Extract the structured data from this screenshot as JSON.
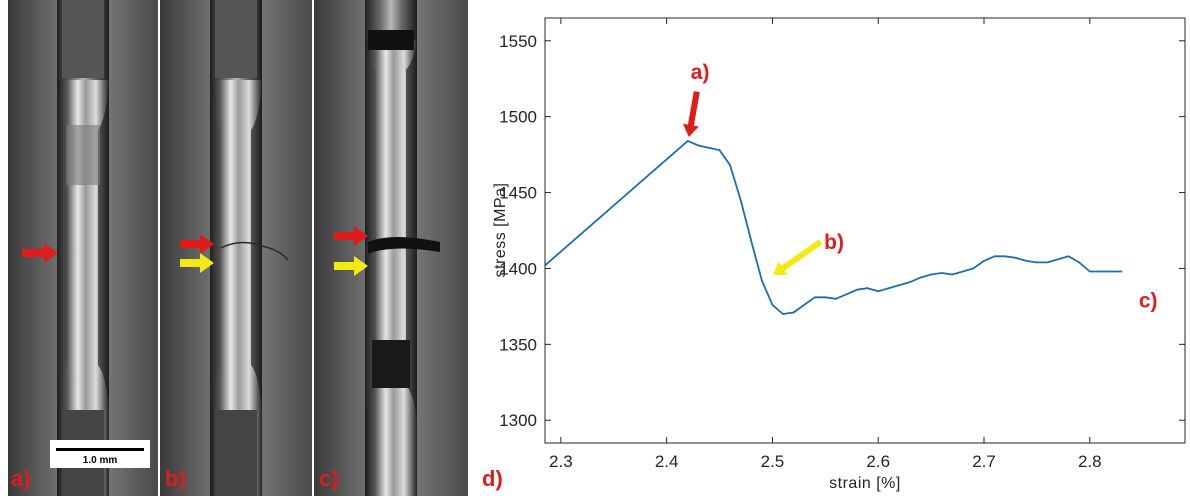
{
  "photo_panels": {
    "scale_bar_label": "1.0 mm",
    "labels": [
      "a)",
      "b)",
      "c)"
    ],
    "arrow_colors": {
      "red": "#e01b1b",
      "yellow": "#f2ea12"
    }
  },
  "chart_panel_label": "d)",
  "chart_data": {
    "type": "line",
    "xlabel": "strain [%]",
    "ylabel": "stress [MPa]",
    "xlim": [
      2.285,
      2.89
    ],
    "ylim": [
      1285,
      1565
    ],
    "xticks": [
      "2.3",
      "2.4",
      "2.5",
      "2.6",
      "2.7",
      "2.8"
    ],
    "xtick_values": [
      2.3,
      2.4,
      2.5,
      2.6,
      2.7,
      2.8
    ],
    "yticks": [
      "1300",
      "1350",
      "1400",
      "1450",
      "1500",
      "1550"
    ],
    "ytick_values": [
      1300,
      1350,
      1400,
      1450,
      1500,
      1550
    ],
    "grid": false,
    "line_color": "#1f6fa8",
    "x": [
      2.285,
      2.42,
      2.43,
      2.45,
      2.46,
      2.47,
      2.48,
      2.49,
      2.5,
      2.51,
      2.52,
      2.53,
      2.54,
      2.55,
      2.56,
      2.57,
      2.58,
      2.59,
      2.6,
      2.61,
      2.62,
      2.63,
      2.64,
      2.65,
      2.66,
      2.67,
      2.68,
      2.69,
      2.7,
      2.71,
      2.72,
      2.73,
      2.74,
      2.75,
      2.76,
      2.77,
      2.78,
      2.79,
      2.8,
      2.81,
      2.82,
      2.83
    ],
    "y": [
      1402,
      1484,
      1481,
      1478,
      1468,
      1445,
      1418,
      1392,
      1376,
      1370,
      1371,
      1376,
      1381,
      1381,
      1380,
      1383,
      1386,
      1387,
      1385,
      1387,
      1389,
      1391,
      1394,
      1396,
      1397,
      1396,
      1398,
      1400,
      1405,
      1408,
      1408,
      1407,
      1405,
      1404,
      1404,
      1406,
      1408,
      1404,
      1398,
      1398,
      1398,
      1398
    ],
    "annotations": [
      {
        "text": "a)",
        "color": "#e01b1b",
        "x": 2.42,
        "y": 1484
      },
      {
        "text": "b)",
        "color": "#e01b1b",
        "x": 2.495,
        "y": 1393
      },
      {
        "text": "c)",
        "color": "#e01b1b",
        "x": 2.835,
        "y": 1398
      }
    ]
  }
}
